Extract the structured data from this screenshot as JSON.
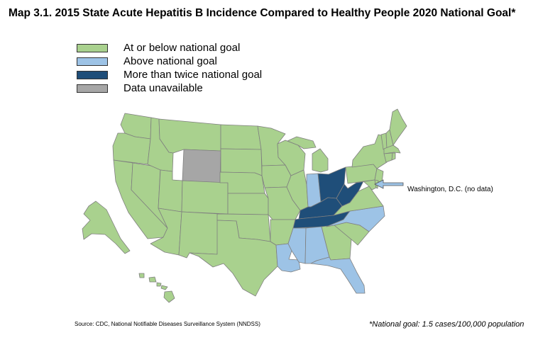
{
  "title": "Map 3.1. 2015 State Acute Hepatitis B Incidence Compared to Healthy People 2020 National Goal*",
  "legend": [
    {
      "label": "At or below national goal",
      "color": "#a9d18e"
    },
    {
      "label": "Above national goal",
      "color": "#9dc3e6"
    },
    {
      "label": "More than twice national goal",
      "color": "#1f4e79"
    },
    {
      "label": "Data unavailable",
      "color": "#a6a6a6"
    }
  ],
  "colors": {
    "at_or_below": "#a9d18e",
    "above": "#9dc3e6",
    "more_than_twice": "#1f4e79",
    "unavailable": "#a6a6a6",
    "border": "#7f7f7f"
  },
  "states": {
    "more_than_twice": [
      "Ohio",
      "Kentucky",
      "Tennessee",
      "West Virginia"
    ],
    "above": [
      "Indiana",
      "Mississippi",
      "Alabama",
      "North Carolina",
      "Florida",
      "Louisiana"
    ],
    "unavailable": [
      "Wyoming"
    ]
  },
  "dc_label": "Washington, D.C. (no data)",
  "source": "Source: CDC, National Notifiable Diseases Surveillance System (NNDSS)",
  "footnote": "*National goal: 1.5 cases/100,000 population"
}
